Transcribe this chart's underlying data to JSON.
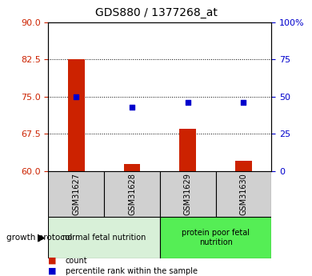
{
  "title": "GDS880 / 1377268_at",
  "samples": [
    "GSM31627",
    "GSM31628",
    "GSM31629",
    "GSM31630"
  ],
  "bar_values": [
    82.5,
    61.5,
    68.5,
    62.0
  ],
  "scatter_values": [
    50,
    43,
    46,
    46
  ],
  "ylim_left": [
    60,
    90
  ],
  "ylim_right": [
    0,
    100
  ],
  "yticks_left": [
    60,
    67.5,
    75,
    82.5,
    90
  ],
  "yticks_right": [
    0,
    25,
    50,
    75,
    100
  ],
  "yticklabels_right": [
    "0",
    "25",
    "50",
    "75",
    "100%"
  ],
  "bar_color": "#cc2200",
  "scatter_color": "#0000cc",
  "bar_bottom": 60,
  "grid_lines": [
    67.5,
    75,
    82.5
  ],
  "groups": [
    {
      "label": "normal fetal nutrition",
      "samples": [
        0,
        1
      ],
      "color": "#d8f0d8"
    },
    {
      "label": "protein poor fetal\nnutrition",
      "samples": [
        2,
        3
      ],
      "color": "#55ee55"
    }
  ],
  "group_label": "growth protocol",
  "legend_items": [
    {
      "color": "#cc2200",
      "label": "count"
    },
    {
      "color": "#0000cc",
      "label": "percentile rank within the sample"
    }
  ],
  "background_color": "#ffffff",
  "plot_bg": "#ffffff",
  "tick_color_left": "#cc2200",
  "tick_color_right": "#0000cc",
  "bar_width": 0.3,
  "sample_box_color": "#d0d0d0",
  "title_fontsize": 10,
  "tick_fontsize": 8,
  "sample_fontsize": 7,
  "group_fontsize": 7
}
